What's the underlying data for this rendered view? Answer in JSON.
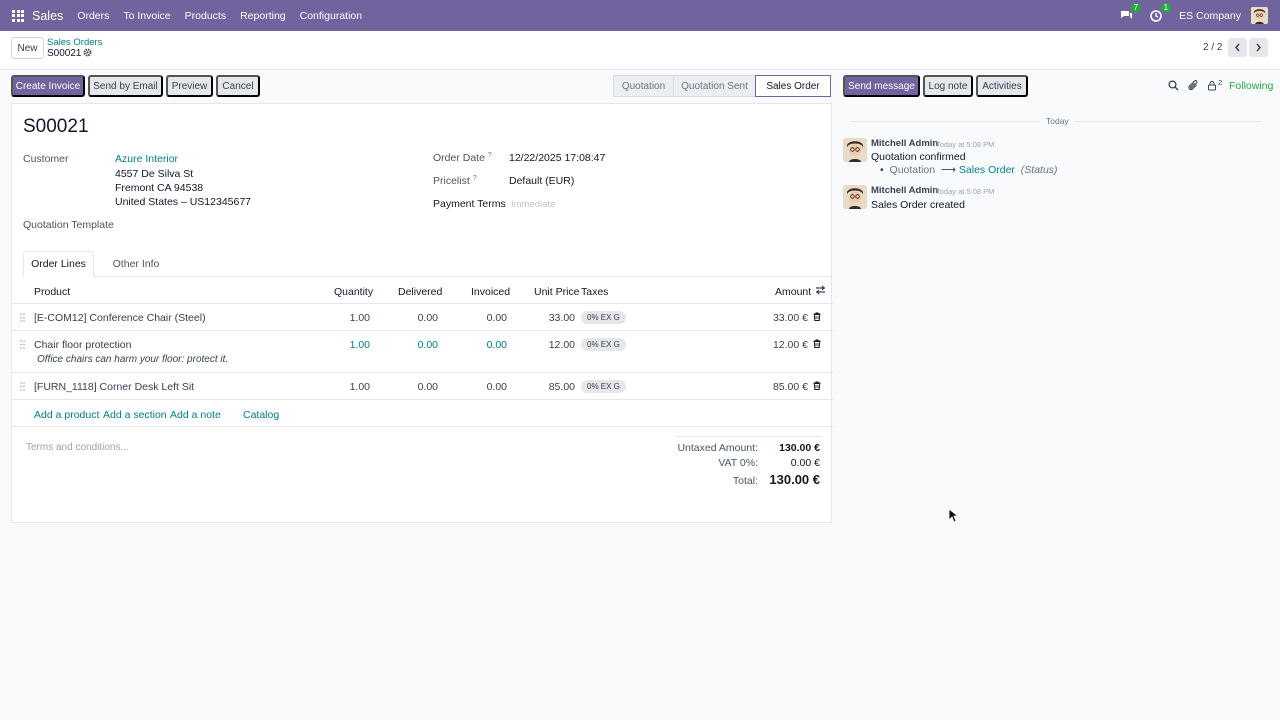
{
  "topbar": {
    "app_name": "Sales",
    "menu": [
      "Orders",
      "To Invoice",
      "Products",
      "Reporting",
      "Configuration"
    ],
    "messages_count": "7",
    "activities_count": "1",
    "company": "ES Company"
  },
  "control": {
    "new_label": "New",
    "breadcrumb": "Sales Orders",
    "record": "S00021",
    "pager": "2 / 2"
  },
  "actions": {
    "create_invoice": "Create Invoice",
    "send_email": "Send by Email",
    "preview": "Preview",
    "cancel": "Cancel"
  },
  "status": {
    "stages": [
      "Quotation",
      "Quotation Sent",
      "Sales Order"
    ],
    "active": "Sales Order"
  },
  "form": {
    "title": "S00021",
    "customer_label": "Customer",
    "customer_name": "Azure Interior",
    "address1": "4557 De Silva St",
    "address2": "Fremont CA 94538",
    "address3": "United States – US12345677",
    "template_label": "Quotation Template",
    "order_date_label": "Order Date",
    "order_date": "12/22/2025 17:08:47",
    "pricelist_label": "Pricelist",
    "pricelist": "Default (EUR)",
    "payment_terms_label": "Payment Terms",
    "payment_terms_placeholder": "Immediate",
    "help_mark": "?"
  },
  "tabs": {
    "order_lines": "Order Lines",
    "other_info": "Other Info"
  },
  "lines": {
    "headers": {
      "product": "Product",
      "quantity": "Quantity",
      "delivered": "Delivered",
      "invoiced": "Invoiced",
      "unit_price": "Unit Price",
      "taxes": "Taxes",
      "amount": "Amount"
    },
    "rows": [
      {
        "product": "[E-COM12] Conference Chair (Steel)",
        "quantity": "1.00",
        "delivered": "0.00",
        "invoiced": "0.00",
        "unit_price": "33.00",
        "tax": "0% EX G",
        "amount": "33.00 €"
      },
      {
        "product": "Chair floor protection",
        "note": "Office chairs can harm your floor: protect it.",
        "quantity": "1.00",
        "delivered": "0.00",
        "invoiced": "0.00",
        "unit_price": "12.00",
        "tax": "0% EX G",
        "amount": "12.00 €"
      },
      {
        "product": "[FURN_1118] Corner Desk Left Sit",
        "quantity": "1.00",
        "delivered": "0.00",
        "invoiced": "0.00",
        "unit_price": "85.00",
        "tax": "0% EX G",
        "amount": "85.00 €"
      }
    ],
    "add_product": "Add a product",
    "add_section": "Add a section",
    "add_note": "Add a note",
    "catalog": "Catalog"
  },
  "footer": {
    "terms_placeholder": "Terms and conditions...",
    "untaxed_label": "Untaxed Amount:",
    "untaxed": "130.00 €",
    "vat_label": "VAT 0%:",
    "vat": "0.00 €",
    "total_label": "Total:",
    "total": "130.00 €"
  },
  "chatter": {
    "send_message": "Send message",
    "log_note": "Log note",
    "activities": "Activities",
    "followers_count": "2",
    "following": "Following",
    "today": "Today",
    "messages": [
      {
        "author": "Mitchell Admin",
        "date": "Today at 5:08 PM",
        "body": "Quotation confirmed",
        "tracking_old": "Quotation",
        "tracking_arrow": "⟶",
        "tracking_new": "Sales Order",
        "tracking_field": "(Status)"
      },
      {
        "author": "Mitchell Admin",
        "date": "Today at 5:08 PM",
        "body": "Sales Order created"
      }
    ]
  },
  "colors": {
    "brand": "#71639e",
    "link": "#017e84",
    "badge": "#28a745"
  }
}
